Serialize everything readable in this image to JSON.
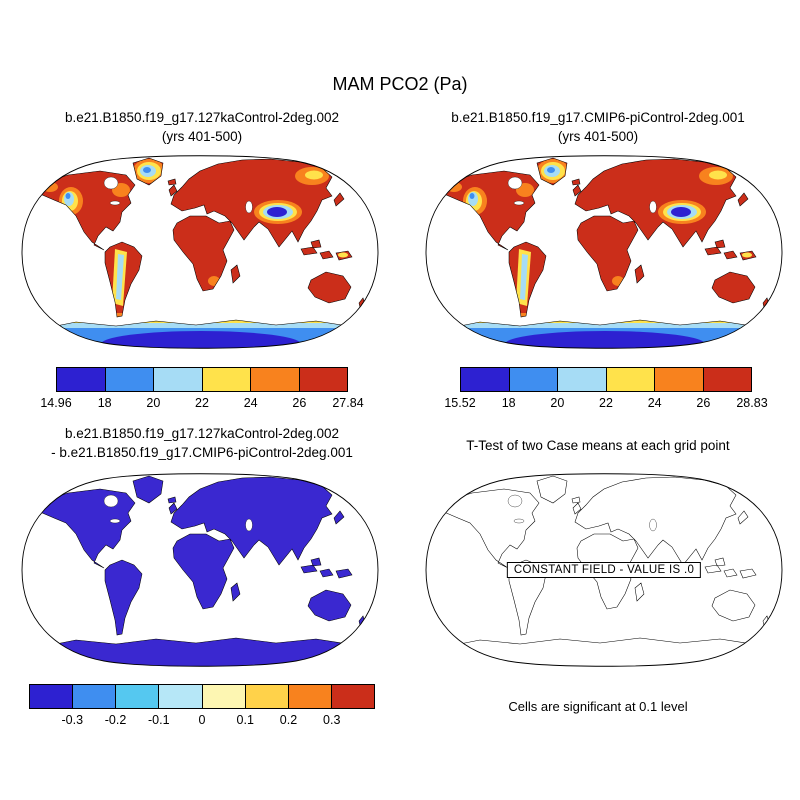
{
  "figure": {
    "title": "MAM PCO2 (Pa)"
  },
  "panels": {
    "top_left": {
      "title1": "b.e21.B1850.f19_g17.127kaControl-2deg.002",
      "title2": "(yrs 401-500)",
      "colorbar": {
        "labels": [
          "14.96",
          "18",
          "20",
          "22",
          "24",
          "26",
          "27.84"
        ],
        "colors": [
          "#2d21d1",
          "#3f8ef0",
          "#a6dcf5",
          "#ffe24b",
          "#f8821e",
          "#cb2e1a"
        ]
      }
    },
    "top_right": {
      "title1": "b.e21.B1850.f19_g17.CMIP6-piControl-2deg.001",
      "title2": "(yrs 401-500)",
      "colorbar": {
        "labels": [
          "15.52",
          "18",
          "20",
          "22",
          "24",
          "26",
          "28.83"
        ],
        "colors": [
          "#2d21d1",
          "#3f8ef0",
          "#a6dcf5",
          "#ffe24b",
          "#f8821e",
          "#cb2e1a"
        ]
      }
    },
    "bottom_left": {
      "title1": "b.e21.B1850.f19_g17.127kaControl-2deg.002",
      "title2": "- b.e21.B1850.f19_g17.CMIP6-piControl-2deg.001",
      "colorbar": {
        "labels": [
          "-0.3",
          "-0.2",
          "-0.1",
          "0",
          "0.1",
          "0.2",
          "0.3"
        ],
        "colors": [
          "#2d21d1",
          "#3f8ef0",
          "#55c8f0",
          "#b6e7f7",
          "#fdf6b2",
          "#ffd24a",
          "#f8821e",
          "#cb2e1a"
        ]
      }
    },
    "bottom_right": {
      "title": "T-Test of two Case means at each grid point",
      "constant_field_label": "CONSTANT FIELD - VALUE IS .0",
      "footnote": "Cells are significant at 0.1 level"
    }
  },
  "palette": {
    "land-warm": "#cb2e1a",
    "diff-land": "#3a28d0",
    "overlay-orange": "#f8821e",
    "overlay-yellow": "#ffe24b",
    "overlay-lightblue": "#a6dcf5",
    "overlay-blue": "#3f8ef0",
    "overlay-darkblue": "#2d21d1",
    "coastline": "#000000"
  },
  "chart_data": [
    {
      "type": "heatmap",
      "panel": "top_left",
      "title": "b.e21.B1850.f19_g17.127kaControl-2deg.002 (yrs 401-500)",
      "variable": "MAM PCO2 (Pa)",
      "projection": "robinson world map",
      "min": 14.96,
      "max": 27.84,
      "contour_levels": [
        18,
        20,
        22,
        24,
        26
      ],
      "colorbar_labels": [
        "14.96",
        "18",
        "20",
        "22",
        "24",
        "26",
        "27.84"
      ],
      "colors": [
        "#2d21d1",
        "#3f8ef0",
        "#a6dcf5",
        "#ffe24b",
        "#f8821e",
        "#cb2e1a"
      ],
      "legend_position": "bottom"
    },
    {
      "type": "heatmap",
      "panel": "top_right",
      "title": "b.e21.B1850.f19_g17.CMIP6-piControl-2deg.001 (yrs 401-500)",
      "variable": "MAM PCO2 (Pa)",
      "projection": "robinson world map",
      "min": 15.52,
      "max": 28.83,
      "contour_levels": [
        18,
        20,
        22,
        24,
        26
      ],
      "colorbar_labels": [
        "15.52",
        "18",
        "20",
        "22",
        "24",
        "26",
        "28.83"
      ],
      "colors": [
        "#2d21d1",
        "#3f8ef0",
        "#a6dcf5",
        "#ffe24b",
        "#f8821e",
        "#cb2e1a"
      ],
      "legend_position": "bottom"
    },
    {
      "type": "heatmap",
      "panel": "bottom_left",
      "title": "b.e21.B1850.f19_g17.127kaControl-2deg.002 - b.e21.B1850.f19_g17.CMIP6-piControl-2deg.001",
      "variable": "MAM PCO2 difference (Pa)",
      "projection": "robinson world map",
      "contour_levels": [
        -0.3,
        -0.2,
        -0.1,
        0,
        0.1,
        0.2,
        0.3
      ],
      "colorbar_labels": [
        "-0.3",
        "-0.2",
        "-0.1",
        "0",
        "0.1",
        "0.2",
        "0.3"
      ],
      "colors": [
        "#2d21d1",
        "#3f8ef0",
        "#55c8f0",
        "#b6e7f7",
        "#fdf6b2",
        "#ffd24a",
        "#f8821e",
        "#cb2e1a"
      ],
      "legend_position": "bottom",
      "observation": "all land shaded in a single uniform blue color"
    },
    {
      "type": "map",
      "panel": "bottom_right",
      "title": "T-Test of two Case means at each grid point",
      "annotation": "CONSTANT FIELD - VALUE IS .0",
      "footnote": "Cells are significant at 0.1 level",
      "observation": "coastline outlines only, no shading"
    }
  ]
}
